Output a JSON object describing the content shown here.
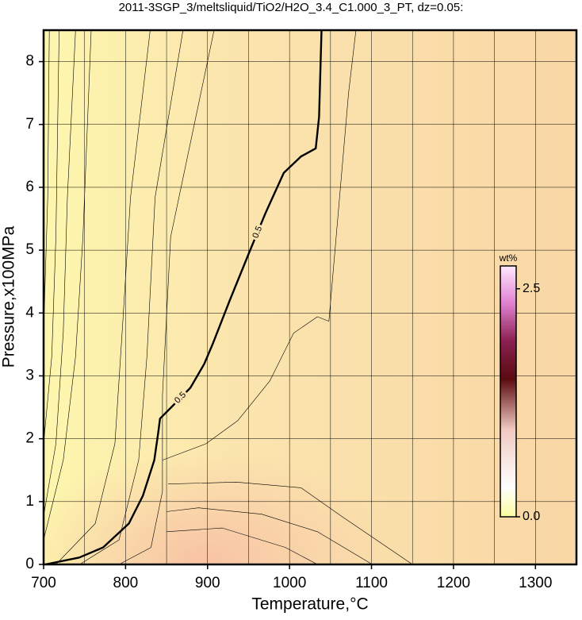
{
  "chart_data": {
    "type": "contour",
    "title": "2011-3SGP_3/meltsliquid/TiO2/H2O_3.4_C1.000_3_PT, dz=0.05:",
    "x_label": "Temperature,°C",
    "y_label": "Pressure,x100MPa",
    "xlim": [
      700,
      1350
    ],
    "ylim": [
      0,
      8.5
    ],
    "xticks": [
      700,
      800,
      900,
      1000,
      1100,
      1200,
      1300
    ],
    "xminor": [
      750,
      850,
      950,
      1050,
      1150,
      1250
    ],
    "yticks": [
      0,
      1,
      2,
      3,
      4,
      5,
      6,
      7,
      8
    ],
    "grid": true,
    "main_contour": {
      "label": "0.5",
      "color": "#000000",
      "x": [
        702,
        743.5,
        772.5,
        804,
        821,
        835,
        840,
        842,
        855,
        879,
        896,
        906,
        927,
        951,
        971,
        993,
        1014,
        1032,
        1036,
        1039
      ],
      "y": [
        0,
        0.11,
        0.27,
        0.65,
        1.09,
        1.66,
        2.11,
        2.32,
        2.49,
        2.81,
        3.19,
        3.5,
        4.2,
        4.97,
        5.6,
        6.23,
        6.49,
        6.62,
        7.12,
        8.5
      ]
    },
    "contours": [
      {
        "x": [
          852,
          935,
          1014,
          1063,
          1150
        ],
        "y": [
          1.28,
          1.31,
          1.22,
          0.77,
          0
        ]
      },
      {
        "x": [
          850,
          889,
          966,
          1034,
          1101
        ],
        "y": [
          0.84,
          0.9,
          0.8,
          0.52,
          0
        ]
      },
      {
        "x": [
          850,
          918,
          995,
          1034
        ],
        "y": [
          0.52,
          0.58,
          0.27,
          0
        ]
      },
      {
        "x": [
          845,
          898,
          937,
          976,
          1005,
          1034,
          1048,
          1072,
          1081
        ],
        "y": [
          1.66,
          1.92,
          2.29,
          2.92,
          3.68,
          3.94,
          3.87,
          7.5,
          8.5
        ]
      },
      {
        "x": [
          700,
          724,
          739,
          748,
          758
        ],
        "y": [
          0.39,
          1.66,
          3.31,
          5.21,
          8.5
        ]
      },
      {
        "x": [
          700,
          715,
          724,
          729,
          739
        ],
        "y": [
          0.77,
          1.92,
          3.69,
          5.84,
          8.5
        ]
      },
      {
        "x": [
          700,
          710,
          715,
          719
        ],
        "y": [
          1.92,
          3.31,
          5.21,
          8.5
        ]
      },
      {
        "x": [
          700,
          705,
          707
        ],
        "y": [
          3.69,
          5.84,
          8.5
        ]
      },
      {
        "x": [
          715,
          763,
          787,
          797,
          806,
          830
        ],
        "y": [
          0,
          0.65,
          1.92,
          3.94,
          5.84,
          8.5
        ]
      },
      {
        "x": [
          744,
          792,
          816,
          826,
          836,
          870
        ],
        "y": [
          0,
          0.39,
          1.66,
          3.31,
          5.84,
          8.5
        ]
      },
      {
        "x": [
          792,
          831,
          845,
          845,
          855,
          908
        ],
        "y": [
          0,
          0.27,
          1.16,
          2.69,
          5.21,
          8.5
        ]
      }
    ],
    "colorbar": {
      "label": "wt%",
      "lim": [
        0,
        2.75
      ],
      "ticks": [
        {
          "value": 0,
          "label": "0.0"
        },
        2.5
      ]
    }
  }
}
